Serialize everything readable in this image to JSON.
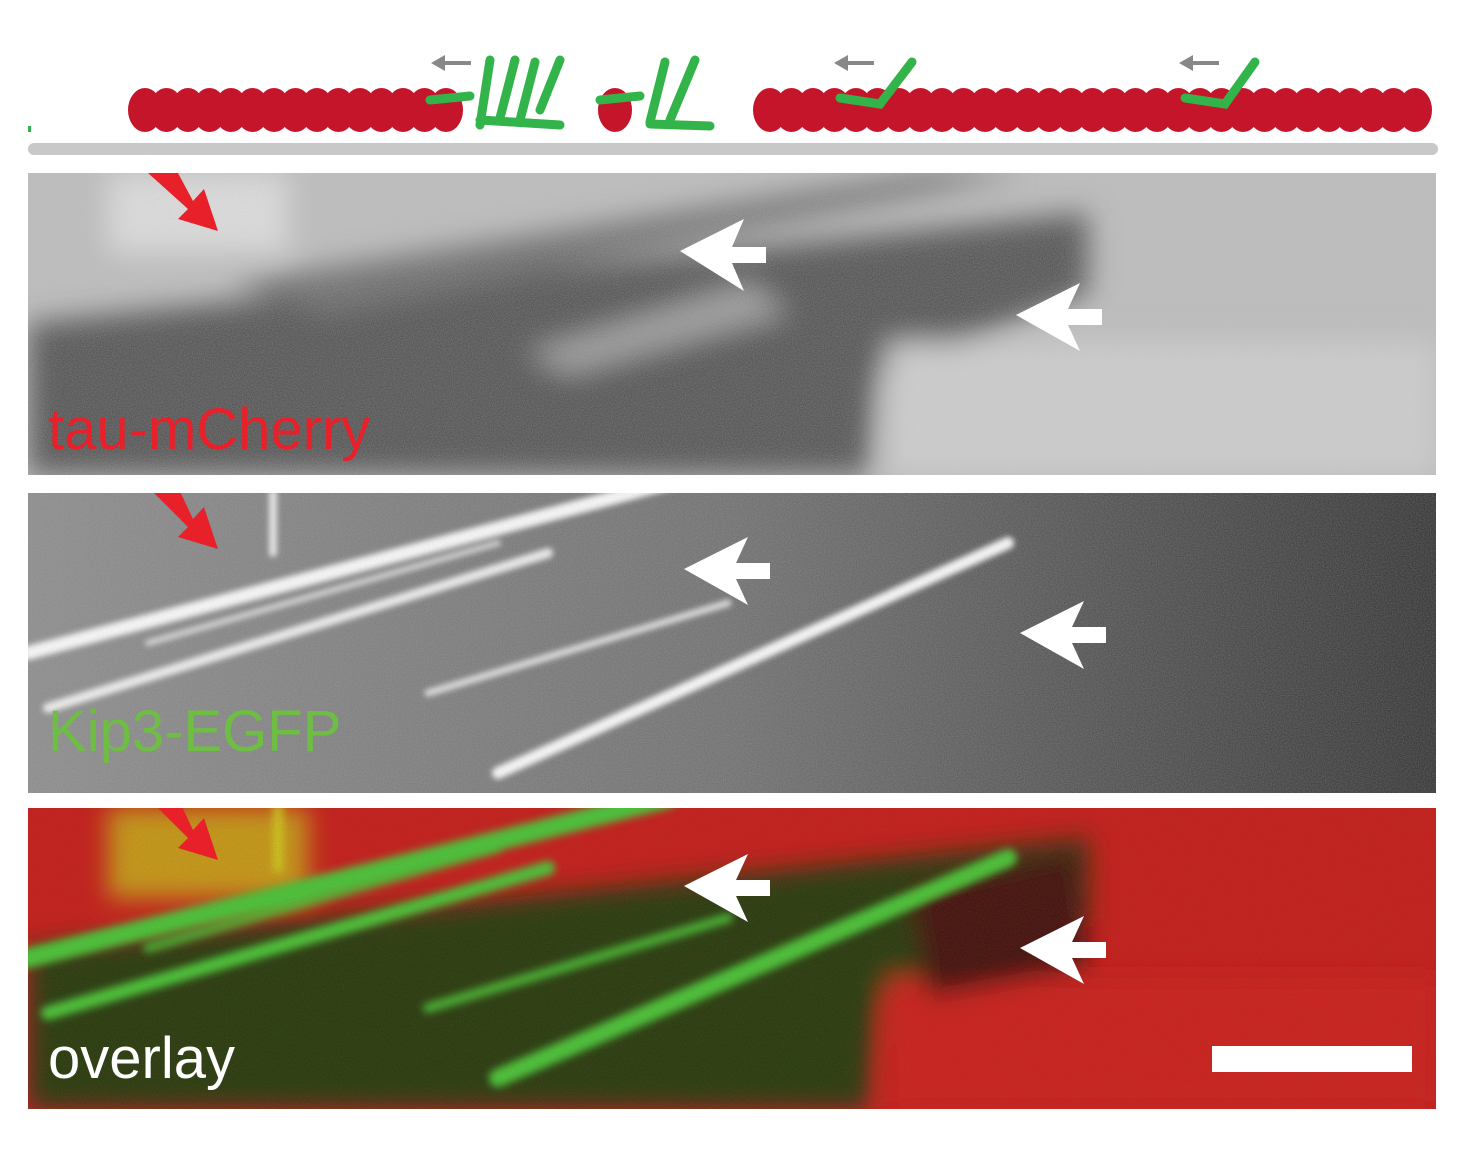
{
  "panels": [
    {
      "id": "tau",
      "label": "tau-mCherry",
      "label_color": "#e8202a"
    },
    {
      "id": "kip3",
      "label": "Kip3-EGFP",
      "label_color": "#6fbe44"
    },
    {
      "id": "overlay",
      "label": "overlay",
      "label_color": "#ffffff"
    }
  ],
  "colors": {
    "tau": "#c4152b",
    "kip3": "#33b44a",
    "microtubule": "#c8c8c8",
    "red_arrow": "#e8202a",
    "white_arrow": "#ffffff",
    "direction_arrow": "#888888",
    "scale_bar": "#ffffff"
  },
  "icons": [
    "red-arrow-icon",
    "white-arrow-icon",
    "direction-arrow-icon"
  ]
}
